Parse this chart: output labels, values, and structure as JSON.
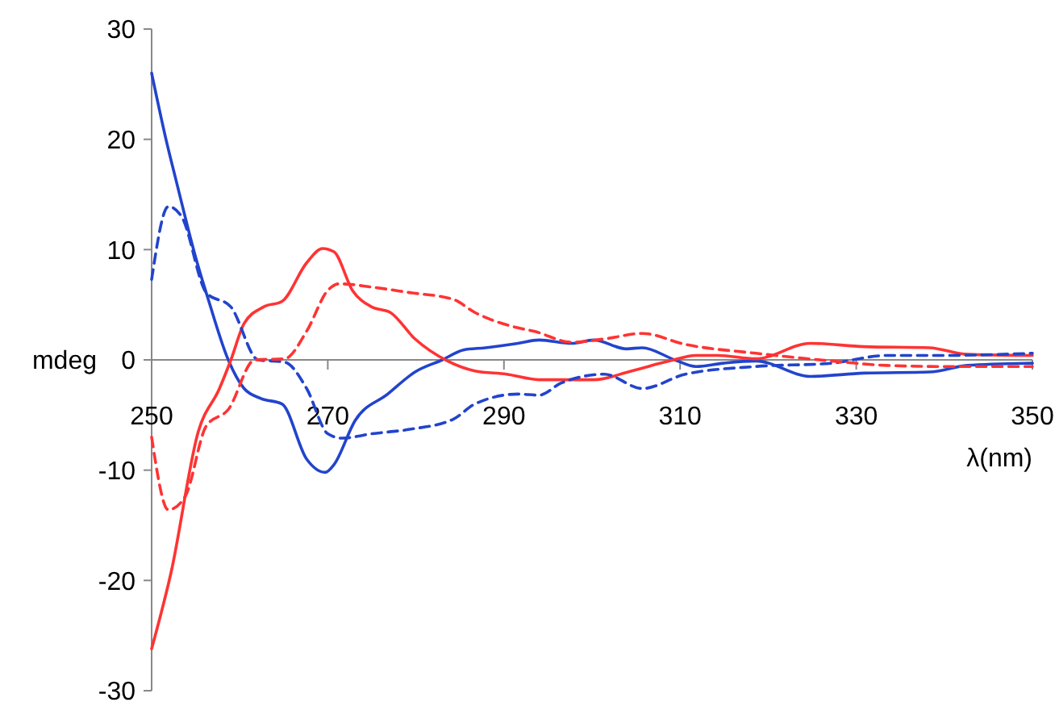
{
  "chart_data": {
    "type": "line",
    "xlabel": "λ(nm)",
    "ylabel": "mdeg",
    "xlim": [
      250,
      350
    ],
    "xticks": [
      250,
      270,
      290,
      310,
      330,
      350
    ],
    "ylim": [
      -30,
      30
    ],
    "yticks": [
      -30,
      -20,
      -10,
      0,
      10,
      20,
      30
    ],
    "grid": false,
    "marker": "none",
    "series": [
      {
        "color": "#2244cc",
        "line_style": "solid",
        "x": [
          250,
          251.6,
          252.8,
          255,
          256.5,
          258.7,
          260.5,
          262.4,
          264.8,
          267.6,
          269.7,
          270.7,
          273.1,
          276.8,
          279.9,
          283,
          285.4,
          287.9,
          291.6,
          294,
          297.7,
          300.2,
          303.9,
          305.7,
          309.4,
          311.8,
          314.9,
          318.6,
          324.8,
          330.9,
          338.3,
          342.6,
          350
        ],
        "values": [
          26,
          20.1,
          16.2,
          9.3,
          5.3,
          0,
          -2.6,
          -3.5,
          -4,
          -9,
          -10.2,
          -9.5,
          -5.5,
          -3.1,
          -1.1,
          0,
          0.9,
          1.1,
          1.5,
          1.8,
          1.5,
          1.8,
          1,
          1.1,
          0,
          -0.6,
          -0.3,
          -0.1,
          -1.5,
          -1.2,
          -1.1,
          -0.5,
          -0.3
        ]
      },
      {
        "color": "#ff3333",
        "line_style": "solid",
        "x": [
          250,
          252.2,
          255.3,
          257.7,
          259,
          260.5,
          262.7,
          264.8,
          267.6,
          269.4,
          270.7,
          272.8,
          275,
          277.1,
          279.9,
          283.6,
          286.7,
          290.3,
          294,
          300.2,
          304.5,
          308.8,
          311.8,
          314.3,
          318.6,
          324.8,
          330.9,
          338.3,
          342.6,
          350
        ],
        "values": [
          -26.2,
          -19.3,
          -6.5,
          -2.6,
          0,
          3.3,
          4.8,
          5.3,
          8.8,
          10.1,
          9.8,
          6.3,
          4.8,
          4.3,
          1.9,
          -0.1,
          -1,
          -1.3,
          -1.8,
          -1.8,
          -1,
          -0.1,
          0.4,
          0.4,
          0.1,
          1.5,
          1.2,
          1.1,
          0.5,
          0.4
        ]
      },
      {
        "color": "#2244cc",
        "line_style": "dashed",
        "x": [
          250,
          251.9,
          253.4,
          256.2,
          259,
          262.1,
          265.1,
          267.6,
          270,
          271.6,
          275,
          279.3,
          284.2,
          286.7,
          291.6,
          294,
          296.5,
          301.4,
          305.7,
          310.6,
          318.6,
          327.2,
          333.4,
          339.6,
          350
        ],
        "values": [
          7.3,
          13.9,
          13,
          6.1,
          4.8,
          0,
          -0.2,
          -2.6,
          -6.7,
          -7.1,
          -6.7,
          -6.3,
          -5.4,
          -4,
          -3.1,
          -3.2,
          -2.1,
          -1.3,
          -2.6,
          -1.3,
          -0.6,
          -0.3,
          0.4,
          0.4,
          0.6
        ]
      },
      {
        "color": "#ff3333",
        "line_style": "dashed",
        "x": [
          250,
          251.9,
          253.8,
          256.2,
          258.7,
          261.7,
          265.1,
          267.6,
          270,
          271.3,
          275,
          279.3,
          284.2,
          286.7,
          291.6,
          293.4,
          297.7,
          301.4,
          305.7,
          310.6,
          318.6,
          327.2,
          333.4,
          339.6,
          350
        ],
        "values": [
          -7,
          -13.6,
          -12.4,
          -6,
          -4.5,
          0,
          0.1,
          2.6,
          6.3,
          6.9,
          6.6,
          6.1,
          5.5,
          4.3,
          2.9,
          2.6,
          1.6,
          1.9,
          2.4,
          1.4,
          0.6,
          -0.1,
          -0.5,
          -0.6,
          -0.6
        ]
      }
    ]
  }
}
